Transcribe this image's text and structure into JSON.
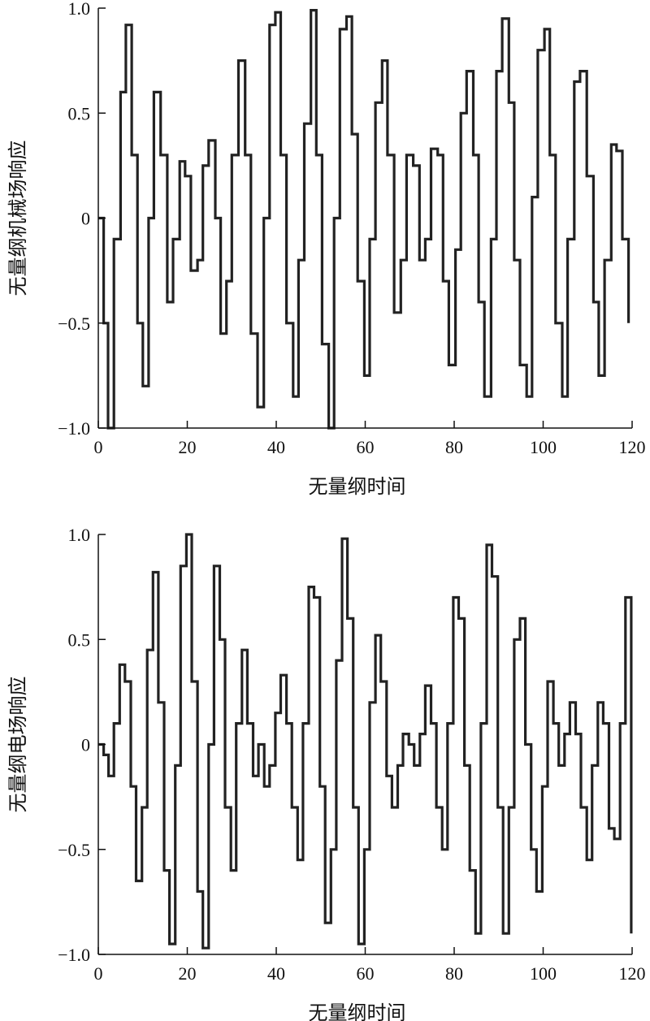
{
  "chart_data": [
    {
      "type": "line",
      "xlabel": "无量纲时间",
      "ylabel": "无量纲机械场响应",
      "xlim": [
        0,
        120
      ],
      "ylim": [
        -1.0,
        1.0
      ],
      "xticks": [
        0,
        20,
        40,
        60,
        80,
        100,
        120
      ],
      "xtick_labels": [
        "0",
        "20",
        "40",
        "60",
        "80",
        "100",
        "120"
      ],
      "yticks": [
        -1.0,
        -0.5,
        0,
        0.5,
        1.0
      ],
      "ytick_labels": [
        "−1.0",
        "−0.5",
        "0",
        "0.5",
        "1.0"
      ],
      "grid": false,
      "line_color": "#222222",
      "series": [
        {
          "x": [
            0,
            1.2,
            2.2,
            3.5,
            5,
            6.2,
            7.5,
            8.8,
            10,
            11.3,
            12.5,
            14,
            15.5,
            16.8,
            18.3,
            19.5,
            20.8,
            22.3,
            23.5,
            24.8,
            26.3,
            27.5,
            28.8,
            30,
            31.5,
            33,
            34.3,
            35.8,
            37.2,
            38.5,
            39.8,
            41,
            42.3,
            43.8,
            45,
            46.3,
            47.8,
            49,
            50.3,
            51.8,
            53,
            54.3,
            55.8,
            57,
            58.3,
            59.8,
            61,
            62.3,
            63.8,
            65,
            66.5,
            68,
            69.3,
            70.8,
            72.2,
            73.5,
            74.8,
            76.3,
            77.5,
            78.8,
            80.3,
            81.5,
            82.8,
            84.3,
            85.5,
            86.8,
            88.3,
            89.5,
            90.8,
            92.3,
            93.5,
            94.8,
            96.3,
            97.5,
            98.8,
            100.3,
            101.5,
            102.8,
            104.3,
            105.5,
            107,
            108.3,
            109.8,
            111.3,
            112.5,
            113.8,
            115.3,
            116.5,
            117.8,
            119.2
          ],
          "y": [
            0,
            -0.5,
            -1.0,
            -0.1,
            0.6,
            0.92,
            0.3,
            -0.5,
            -0.8,
            0.0,
            0.6,
            0.3,
            -0.4,
            -0.1,
            0.27,
            0.2,
            -0.25,
            -0.2,
            0.25,
            0.37,
            0.0,
            -0.55,
            -0.3,
            0.3,
            0.75,
            0.3,
            -0.55,
            -0.9,
            0.0,
            0.92,
            0.98,
            0.3,
            -0.5,
            -0.85,
            -0.2,
            0.45,
            0.99,
            0.3,
            -0.6,
            -1.0,
            0.0,
            0.9,
            0.96,
            0.4,
            -0.3,
            -0.75,
            -0.1,
            0.55,
            0.75,
            0.3,
            -0.45,
            -0.2,
            0.3,
            0.25,
            -0.2,
            -0.1,
            0.33,
            0.3,
            -0.3,
            -0.7,
            -0.15,
            0.5,
            0.7,
            0.3,
            -0.4,
            -0.85,
            -0.1,
            0.7,
            0.95,
            0.55,
            -0.2,
            -0.7,
            -0.85,
            0.1,
            0.8,
            0.9,
            0.3,
            -0.5,
            -0.85,
            -0.1,
            0.65,
            0.7,
            0.2,
            -0.4,
            -0.75,
            -0.2,
            0.35,
            0.32,
            -0.1,
            -0.5
          ]
        }
      ]
    },
    {
      "type": "line",
      "xlabel": "无量纲时间",
      "ylabel": "无量纲电场响应",
      "xlim": [
        0,
        120
      ],
      "ylim": [
        -1.0,
        1.0
      ],
      "xticks": [
        0,
        20,
        40,
        60,
        80,
        100,
        120
      ],
      "xtick_labels": [
        "0",
        "20",
        "40",
        "60",
        "80",
        "100",
        "120"
      ],
      "yticks": [
        -1.0,
        -0.5,
        0,
        0.5,
        1.0
      ],
      "ytick_labels": [
        "−1.0",
        "−0.5",
        "0",
        "0.5",
        "1.0"
      ],
      "grid": false,
      "line_color": "#222222",
      "series": [
        {
          "x": [
            0,
            1.2,
            2.3,
            3.5,
            4.8,
            6,
            7.3,
            8.5,
            9.8,
            11,
            12.3,
            13.5,
            14.8,
            16,
            17.3,
            18.5,
            19.8,
            21,
            22.3,
            23.5,
            24.8,
            26,
            27.3,
            28.5,
            29.8,
            31,
            32.3,
            33.5,
            34.8,
            36,
            37.3,
            38.5,
            39.8,
            41,
            42.3,
            43.5,
            44.8,
            46,
            47.3,
            48.5,
            49.8,
            51,
            52.3,
            53.5,
            54.8,
            56,
            57.3,
            58.5,
            59.8,
            61,
            62.3,
            63.5,
            64.8,
            66,
            67.3,
            68.5,
            69.8,
            71,
            72.3,
            73.5,
            74.8,
            76,
            77.3,
            78.5,
            79.8,
            81,
            82.3,
            83.5,
            84.8,
            86,
            87.3,
            88.5,
            89.8,
            91,
            92.3,
            93.5,
            94.8,
            96,
            97.3,
            98.5,
            99.8,
            101,
            102.3,
            103.5,
            104.8,
            106,
            107.3,
            108.5,
            109.8,
            111,
            112.3,
            113.5,
            114.8,
            116,
            117.3,
            118.5,
            119.8
          ],
          "y": [
            0,
            -0.05,
            -0.15,
            0.1,
            0.38,
            0.3,
            -0.2,
            -0.65,
            -0.3,
            0.45,
            0.82,
            0.2,
            -0.6,
            -0.95,
            -0.1,
            0.85,
            1.0,
            0.3,
            -0.7,
            -0.97,
            0.0,
            0.85,
            0.5,
            -0.3,
            -0.6,
            0.1,
            0.45,
            0.1,
            -0.15,
            0.0,
            -0.2,
            -0.1,
            0.15,
            0.33,
            0.1,
            -0.3,
            -0.55,
            0.1,
            0.75,
            0.7,
            -0.2,
            -0.85,
            -0.5,
            0.4,
            0.98,
            0.6,
            -0.3,
            -0.95,
            -0.5,
            0.2,
            0.52,
            0.3,
            -0.15,
            -0.3,
            -0.1,
            0.05,
            0.0,
            -0.1,
            0.05,
            0.28,
            0.1,
            -0.3,
            -0.5,
            0.1,
            0.7,
            0.6,
            -0.1,
            -0.6,
            -0.9,
            0.1,
            0.95,
            0.8,
            -0.3,
            -0.9,
            -0.3,
            0.5,
            0.6,
            0.0,
            -0.5,
            -0.7,
            -0.2,
            0.3,
            0.1,
            -0.1,
            0.05,
            0.2,
            0.05,
            -0.3,
            -0.55,
            -0.1,
            0.2,
            0.1,
            -0.4,
            -0.45,
            0.1,
            0.7,
            -0.9
          ]
        }
      ]
    }
  ]
}
